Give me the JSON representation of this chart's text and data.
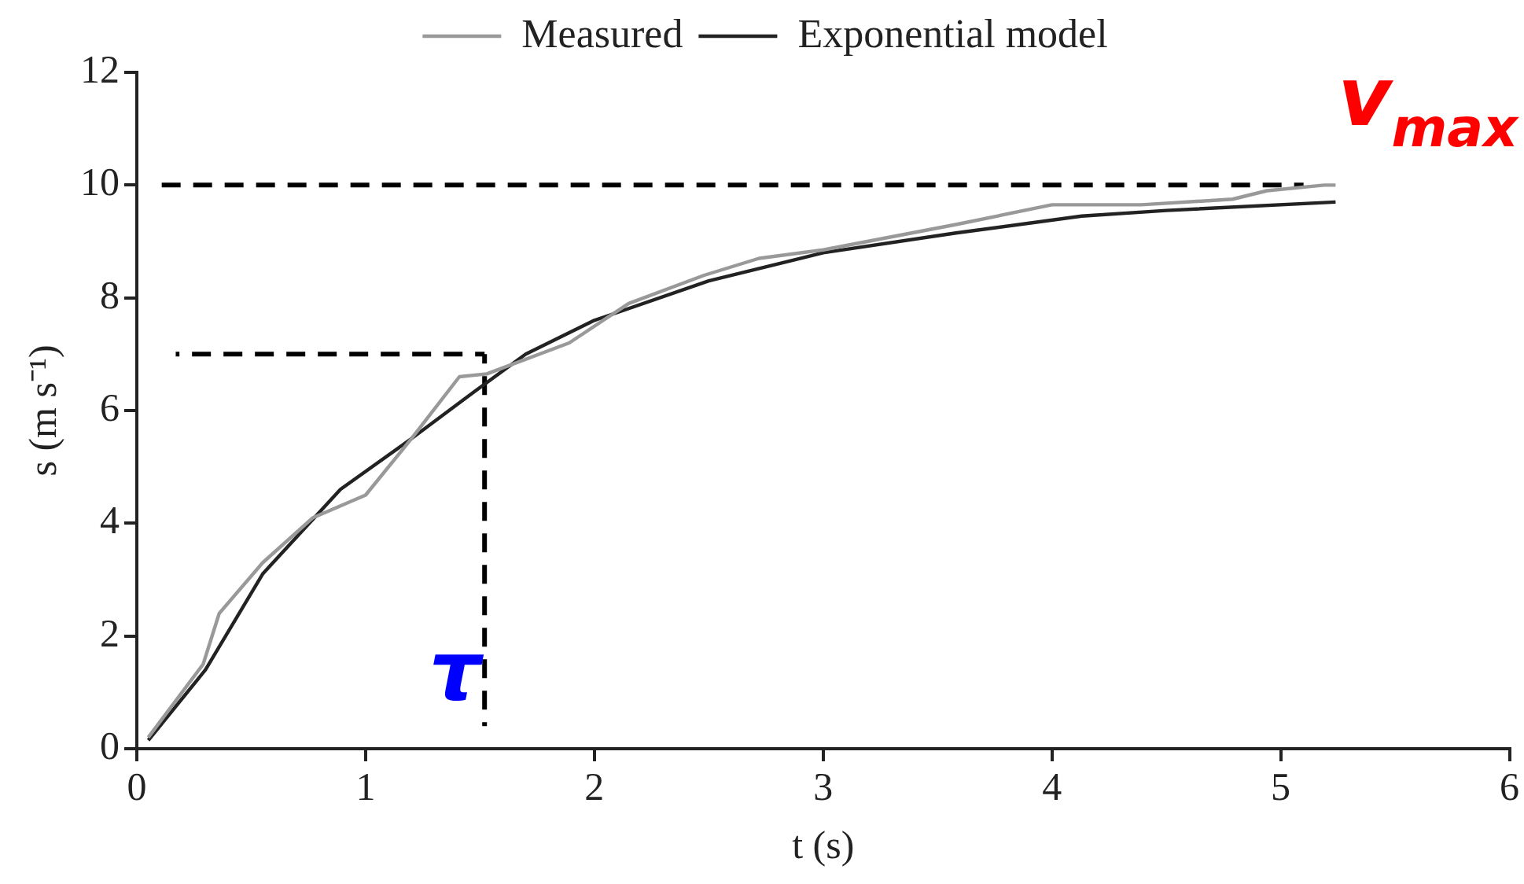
{
  "chart_data": {
    "type": "line",
    "xlabel": "t (s)",
    "ylabel": "s (m s⁻¹)",
    "xlim": [
      0,
      6
    ],
    "xticks": [
      0,
      1,
      2,
      3,
      4,
      5,
      6
    ],
    "ylim": [
      0,
      12
    ],
    "yticks": [
      0,
      2,
      4,
      6,
      8,
      10,
      12
    ],
    "grid": false,
    "legend": "top",
    "marker": "none",
    "line_style": "solid",
    "series": [
      {
        "name": "Measured",
        "color": "#999999",
        "x": [
          0.05,
          0.29,
          0.36,
          0.55,
          0.77,
          1.0,
          1.2,
          1.41,
          1.53,
          1.89,
          2.15,
          2.48,
          2.72,
          3.0,
          3.58,
          4.0,
          4.39,
          4.79,
          4.94,
          5.19,
          5.24
        ],
        "values": [
          0.2,
          1.5,
          2.4,
          3.3,
          4.1,
          4.5,
          5.5,
          6.6,
          6.65,
          7.2,
          7.9,
          8.4,
          8.7,
          8.85,
          9.3,
          9.65,
          9.65,
          9.75,
          9.9,
          10.0,
          10.0
        ]
      },
      {
        "name": "Exponential model",
        "color": "#222222",
        "x": [
          0.05,
          0.3,
          0.55,
          0.89,
          1.2,
          1.48,
          1.7,
          2.0,
          2.5,
          3.0,
          3.58,
          4.13,
          4.5,
          5.24
        ],
        "values": [
          0.15,
          1.4,
          3.1,
          4.6,
          5.5,
          6.35,
          7.0,
          7.6,
          8.3,
          8.8,
          9.15,
          9.45,
          9.55,
          9.7
        ]
      },
      {
        "type": "line",
        "line_style": "dashed",
        "color": "#000000",
        "x": [
          0.1,
          5.1
        ],
        "values": [
          10,
          10
        ]
      },
      {
        "type": "line",
        "line_style": "dashed",
        "color": "#000000",
        "x": [
          0.17,
          1.52
        ],
        "values": [
          7,
          7
        ]
      },
      {
        "type": "line",
        "line_style": "dashed",
        "color": "#000000",
        "x": [
          1.52,
          1.52
        ],
        "values": [
          0.4,
          7
        ]
      }
    ],
    "annotations": [
      "v$_{max}$",
      "τ"
    ]
  }
}
